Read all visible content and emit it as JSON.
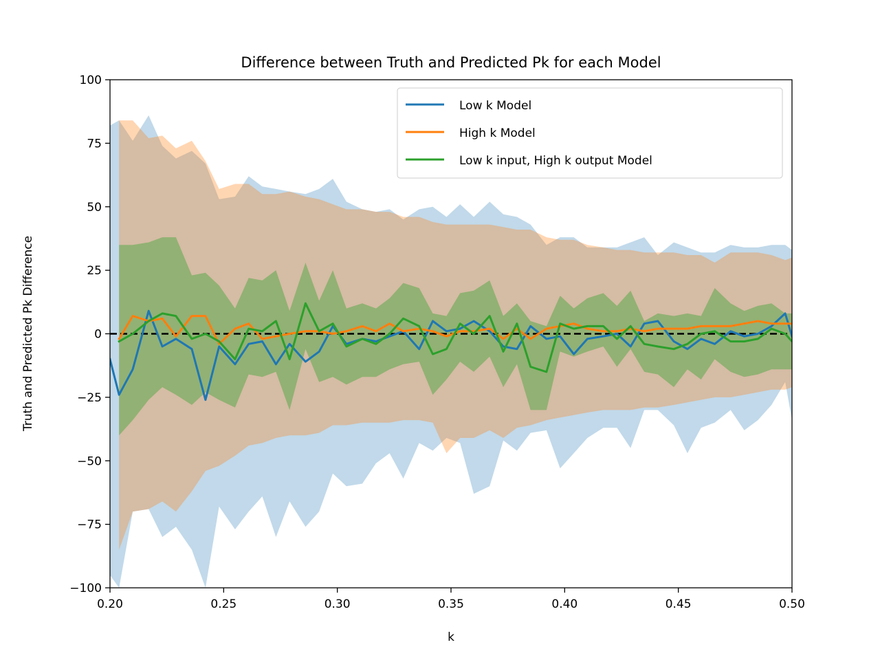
{
  "chart_data": {
    "type": "line",
    "title": "Difference between Truth and Predicted Pk for each Model",
    "xlabel": "k",
    "ylabel": "Truth and Predicted Pk Difference",
    "xlim": [
      0.2,
      0.5
    ],
    "ylim": [
      -100,
      100
    ],
    "xticks": [
      0.2,
      0.25,
      0.3,
      0.35,
      0.4,
      0.45,
      0.5
    ],
    "xtick_labels": [
      "0.20",
      "0.25",
      "0.30",
      "0.35",
      "0.40",
      "0.45",
      "0.50"
    ],
    "yticks": [
      -100,
      -75,
      -50,
      -25,
      0,
      25,
      50,
      75,
      100
    ],
    "ytick_labels": [
      "−100",
      "−75",
      "−50",
      "−25",
      "0",
      "25",
      "50",
      "75",
      "100"
    ],
    "grid": false,
    "legend_position": "top-right",
    "reference_line": {
      "y": 0,
      "style": "dashed",
      "color": "#000000"
    },
    "series": [
      {
        "name": "Low k Model",
        "color": "#1f77b4",
        "band_alpha": 0.28,
        "x": [
          0.2,
          0.204,
          0.21,
          0.217,
          0.223,
          0.229,
          0.236,
          0.242,
          0.248,
          0.255,
          0.261,
          0.267,
          0.273,
          0.279,
          0.286,
          0.292,
          0.298,
          0.304,
          0.311,
          0.317,
          0.323,
          0.329,
          0.336,
          0.342,
          0.348,
          0.354,
          0.36,
          0.367,
          0.373,
          0.379,
          0.385,
          0.392,
          0.398,
          0.404,
          0.41,
          0.417,
          0.423,
          0.429,
          0.435,
          0.441,
          0.448,
          0.454,
          0.46,
          0.466,
          0.473,
          0.479,
          0.485,
          0.491,
          0.497,
          0.5
        ],
        "y": [
          -10,
          -24,
          -14,
          9,
          -5,
          -2,
          -6,
          -26,
          -5,
          -12,
          -4,
          -3,
          -12,
          -4,
          -11,
          -7,
          3,
          -4,
          -2,
          -3,
          -1,
          1,
          -6,
          5,
          1,
          2,
          5,
          1,
          -5,
          -6,
          3,
          -2,
          -1,
          -8,
          -2,
          -1,
          0,
          -5,
          4,
          5,
          -3,
          -6,
          -2,
          -4,
          1,
          -1,
          0,
          3,
          8,
          -1
        ],
        "upper": [
          82,
          84,
          76,
          86,
          74,
          69,
          72,
          67,
          53,
          54,
          62,
          58,
          57,
          56,
          55,
          57,
          61,
          52,
          49,
          48,
          49,
          45,
          49,
          50,
          46,
          51,
          46,
          52,
          47,
          46,
          43,
          35,
          38,
          38,
          34,
          34,
          34,
          36,
          38,
          31,
          36,
          34,
          32,
          32,
          35,
          34,
          34,
          35,
          35,
          33
        ],
        "lower": [
          -95,
          -100,
          -70,
          -69,
          -80,
          -76,
          -85,
          -100,
          -68,
          -77,
          -70,
          -64,
          -80,
          -66,
          -76,
          -70,
          -55,
          -60,
          -59,
          -51,
          -47,
          -57,
          -43,
          -46,
          -41,
          -43,
          -63,
          -60,
          -42,
          -46,
          -39,
          -38,
          -53,
          -47,
          -41,
          -37,
          -37,
          -45,
          -30,
          -30,
          -36,
          -47,
          -37,
          -35,
          -30,
          -38,
          -34,
          -28,
          -19,
          -34
        ]
      },
      {
        "name": "High k Model",
        "color": "#ff7f0e",
        "band_alpha": 0.32,
        "x": [
          0.204,
          0.21,
          0.217,
          0.223,
          0.229,
          0.236,
          0.242,
          0.248,
          0.255,
          0.261,
          0.267,
          0.273,
          0.279,
          0.286,
          0.292,
          0.298,
          0.304,
          0.311,
          0.317,
          0.323,
          0.329,
          0.336,
          0.342,
          0.348,
          0.354,
          0.36,
          0.367,
          0.373,
          0.379,
          0.385,
          0.392,
          0.398,
          0.404,
          0.41,
          0.417,
          0.423,
          0.429,
          0.435,
          0.441,
          0.448,
          0.454,
          0.46,
          0.466,
          0.473,
          0.479,
          0.485,
          0.491,
          0.497,
          0.5
        ],
        "y": [
          -2,
          7,
          5,
          6,
          -1,
          7,
          7,
          -4,
          2,
          4,
          -2,
          -1,
          0,
          1,
          1,
          0,
          1,
          3,
          1,
          4,
          1,
          2,
          1,
          -1,
          1,
          1,
          2,
          -2,
          2,
          -2,
          2,
          3,
          4,
          2,
          1,
          1,
          2,
          1,
          2,
          2,
          2,
          3,
          3,
          3,
          4,
          5,
          4,
          4,
          4
        ],
        "upper": [
          84,
          84,
          77,
          78,
          73,
          76,
          68,
          57,
          59,
          59,
          55,
          55,
          56,
          54,
          53,
          51,
          49,
          49,
          48,
          48,
          46,
          46,
          44,
          43,
          43,
          43,
          43,
          42,
          41,
          41,
          38,
          37,
          37,
          35,
          34,
          33,
          33,
          32,
          32,
          32,
          31,
          31,
          28,
          32,
          32,
          32,
          31,
          29,
          30
        ],
        "lower": [
          -85,
          -70,
          -69,
          -66,
          -70,
          -62,
          -54,
          -52,
          -48,
          -44,
          -43,
          -41,
          -40,
          -40,
          -39,
          -36,
          -36,
          -35,
          -35,
          -35,
          -34,
          -34,
          -35,
          -47,
          -41,
          -41,
          -38,
          -41,
          -37,
          -36,
          -34,
          -33,
          -32,
          -31,
          -30,
          -30,
          -30,
          -29,
          -29,
          -28,
          -27,
          -26,
          -25,
          -25,
          -24,
          -23,
          -22,
          -22,
          -21
        ]
      },
      {
        "name": "Low k input, High k output Model",
        "color": "#2ca02c",
        "band_alpha": 0.4,
        "x": [
          0.204,
          0.21,
          0.217,
          0.223,
          0.229,
          0.236,
          0.242,
          0.248,
          0.255,
          0.261,
          0.267,
          0.273,
          0.279,
          0.286,
          0.292,
          0.298,
          0.304,
          0.311,
          0.317,
          0.323,
          0.329,
          0.336,
          0.342,
          0.348,
          0.354,
          0.36,
          0.367,
          0.373,
          0.379,
          0.385,
          0.392,
          0.398,
          0.404,
          0.41,
          0.417,
          0.423,
          0.429,
          0.435,
          0.441,
          0.448,
          0.454,
          0.46,
          0.466,
          0.473,
          0.479,
          0.485,
          0.491,
          0.497,
          0.5
        ],
        "y": [
          -3,
          0,
          5,
          8,
          7,
          -2,
          0,
          -3,
          -10,
          2,
          1,
          5,
          -10,
          12,
          1,
          4,
          -5,
          -2,
          -4,
          0,
          6,
          3,
          -8,
          -6,
          4,
          0,
          7,
          -7,
          4,
          -13,
          -15,
          4,
          2,
          3,
          3,
          -2,
          3,
          -4,
          -5,
          -6,
          -4,
          0,
          1,
          -3,
          -3,
          -2,
          2,
          0,
          -3
        ],
        "upper": [
          35,
          35,
          36,
          38,
          38,
          23,
          24,
          19,
          10,
          22,
          21,
          25,
          9,
          28,
          13,
          25,
          10,
          12,
          10,
          14,
          20,
          18,
          8,
          7,
          16,
          17,
          21,
          7,
          12,
          5,
          3,
          15,
          10,
          14,
          16,
          11,
          17,
          5,
          8,
          7,
          8,
          7,
          18,
          12,
          9,
          11,
          12,
          8,
          8
        ],
        "lower": [
          -40,
          -34,
          -26,
          -21,
          -24,
          -28,
          -23,
          -26,
          -29,
          -16,
          -17,
          -15,
          -30,
          -6,
          -19,
          -17,
          -20,
          -17,
          -17,
          -14,
          -12,
          -11,
          -24,
          -18,
          -11,
          -15,
          -9,
          -21,
          -12,
          -30,
          -30,
          -7,
          -9,
          -7,
          -5,
          -13,
          -6,
          -15,
          -16,
          -21,
          -14,
          -18,
          -10,
          -15,
          -17,
          -16,
          -14,
          -14,
          -14
        ]
      }
    ]
  }
}
